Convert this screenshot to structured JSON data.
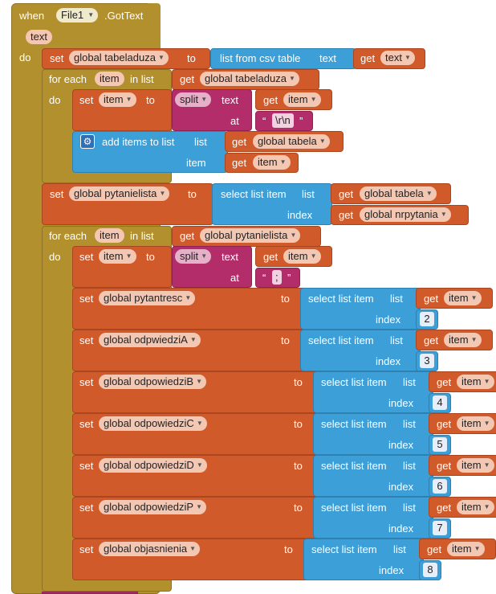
{
  "event": {
    "when_label": "when",
    "component": "File1",
    "event_name": ".GotText",
    "param": "text",
    "do_label": "do"
  },
  "blocks": {
    "set_label": "set",
    "to_label": "to",
    "get_label": "get",
    "for_each_label": "for each",
    "in_list_label": "in list",
    "do_label": "do",
    "item_var": "item",
    "list_from_csv": "list from csv table",
    "text_label": "text",
    "split_label": "split",
    "at_label": "at",
    "add_items_label": "add items to list",
    "list_label": "list",
    "item_label": "item",
    "select_list_item_label": "select list item",
    "index_label": "index",
    "quote_open": "“",
    "quote_close": "”",
    "split_sep_1": "\\r\\n",
    "split_sep_2": ";",
    "var_tabeladuza": "global tabeladuza",
    "var_tabela": "global tabela",
    "var_pytanielista": "global pytanielista",
    "var_nrpytania": "global nrpytania",
    "get_text": "text",
    "assignments": [
      {
        "var": "global pytantresc",
        "index": "2"
      },
      {
        "var": "global odpwiedziA",
        "index": "3"
      },
      {
        "var": "global odpowiedziB",
        "index": "4"
      },
      {
        "var": "global odpowiedziC",
        "index": "5"
      },
      {
        "var": "global odpowiedziD",
        "index": "6"
      },
      {
        "var": "global odpowiedziP",
        "index": "7"
      },
      {
        "var": "global objasnienia",
        "index": "8"
      }
    ]
  },
  "colors": {
    "event": "#b2902d",
    "variables": "#d15a2a",
    "lists": "#3c9fd8",
    "text": "#b32d6a"
  }
}
